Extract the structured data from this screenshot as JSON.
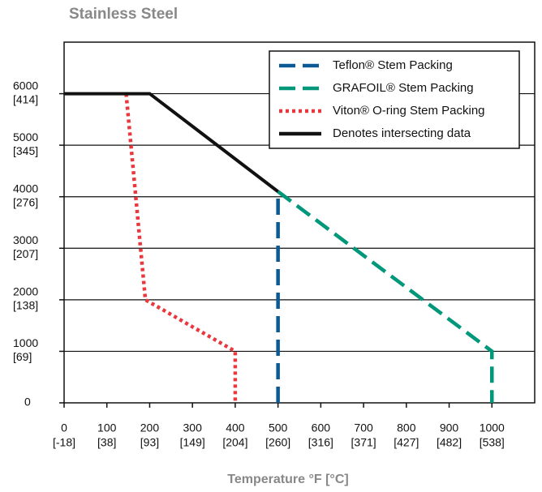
{
  "chart_data": {
    "type": "line",
    "title": "Stainless Steel",
    "x_label": "Temperature °F [°C]",
    "xlim": [
      0,
      1100
    ],
    "ylim": [
      0,
      7000
    ],
    "xticks": [
      {
        "value": 0,
        "label": "0",
        "sublabel": "[-18]"
      },
      {
        "value": 100,
        "label": "100",
        "sublabel": "[38]"
      },
      {
        "value": 200,
        "label": "200",
        "sublabel": "[93]"
      },
      {
        "value": 300,
        "label": "300",
        "sublabel": "[149]"
      },
      {
        "value": 400,
        "label": "400",
        "sublabel": "[204]"
      },
      {
        "value": 500,
        "label": "500",
        "sublabel": "[260]"
      },
      {
        "value": 600,
        "label": "600",
        "sublabel": "[316]"
      },
      {
        "value": 700,
        "label": "700",
        "sublabel": "[371]"
      },
      {
        "value": 800,
        "label": "800",
        "sublabel": "[427]"
      },
      {
        "value": 900,
        "label": "900",
        "sublabel": "[482]"
      },
      {
        "value": 1000,
        "label": "1000",
        "sublabel": "[538]"
      }
    ],
    "yticks": [
      0,
      {
        "value": 1000,
        "label": "1000",
        "sublabel": "[69]"
      },
      {
        "value": 2000,
        "label": "2000",
        "sublabel": "[138]"
      },
      {
        "value": 3000,
        "label": "3000",
        "sublabel": "[207]"
      },
      {
        "value": 4000,
        "label": "4000",
        "sublabel": "[276]"
      },
      {
        "value": 5000,
        "label": "5000",
        "sublabel": "[345]"
      },
      {
        "value": 6000,
        "label": "6000",
        "sublabel": "[414]"
      }
    ],
    "grid": true,
    "legend": "upper right",
    "series": [
      {
        "name": "Teflon® Stem Packing",
        "color": "#0b5a96",
        "style": "dashed",
        "x": [
          500,
          500
        ],
        "values": [
          0,
          4100
        ]
      },
      {
        "name": "GRAFOIL® Stem Packing",
        "color": "#00977a",
        "style": "dashed",
        "x": [
          500,
          1000,
          1000
        ],
        "values": [
          4100,
          1000,
          0
        ]
      },
      {
        "name": "Viton® O-ring Stem Packing",
        "color": "#e8383d",
        "style": "dotted",
        "x": [
          145,
          190,
          400,
          400
        ],
        "values": [
          6000,
          2000,
          1000,
          0
        ]
      },
      {
        "name": "Denotes intersecting data",
        "color": "#111111",
        "style": "solid",
        "x": [
          0,
          200,
          500
        ],
        "values": [
          6000,
          6000,
          4100
        ]
      }
    ]
  }
}
